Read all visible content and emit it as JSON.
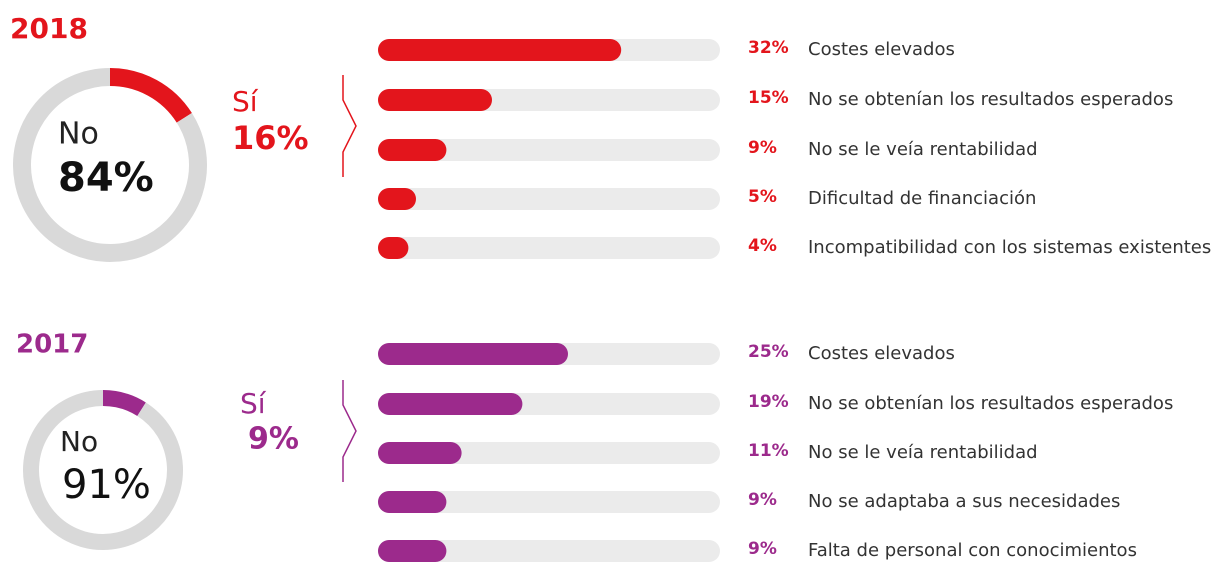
{
  "chart_data": [
    {
      "type": "pie",
      "title": "2018",
      "categories": [
        "No",
        "Sí"
      ],
      "values": [
        84,
        16
      ],
      "value_labels": [
        "84%",
        "16%"
      ],
      "colors": [
        "#d9d9d9",
        "#e3151c"
      ]
    },
    {
      "type": "bar",
      "categories": [
        "Costes elevados",
        "No se obtenían los resultados esperados",
        "No se le veía rentabilidad",
        "Dificultad de financiación",
        "Incompatibilidad con los sistemas existentes"
      ],
      "values": [
        32,
        15,
        9,
        5,
        4
      ],
      "value_labels": [
        "32%",
        "15%",
        "9%",
        "5%",
        "4%"
      ],
      "color": "#e3151c",
      "xlim": [
        0,
        45
      ]
    },
    {
      "type": "pie",
      "title": "2017",
      "categories": [
        "No",
        "Sí"
      ],
      "values": [
        91,
        9
      ],
      "value_labels": [
        "91%",
        "9%"
      ],
      "colors": [
        "#d9d9d9",
        "#9c2a8c"
      ]
    },
    {
      "type": "bar",
      "categories": [
        "Costes elevados",
        "No se obtenían los resultados esperados",
        "No se le veía rentabilidad",
        "No se adaptaba a sus necesidades",
        "Falta de personal con conocimientos"
      ],
      "values": [
        25,
        19,
        11,
        9,
        9
      ],
      "value_labels": [
        "25%",
        "19%",
        "11%",
        "9%",
        "9%"
      ],
      "color": "#9c2a8c",
      "xlim": [
        0,
        45
      ]
    }
  ]
}
